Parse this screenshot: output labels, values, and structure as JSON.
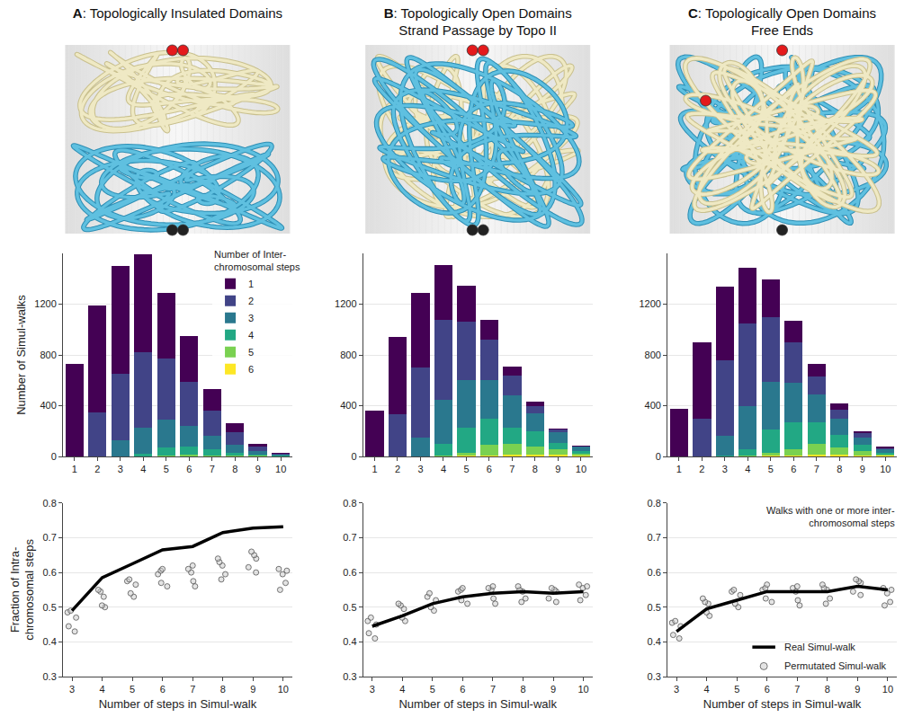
{
  "panels": [
    {
      "title": "A: Topologically Insulated Domains"
    },
    {
      "title": "B: Topologically Open Domains",
      "subtitle": "Strand Passage by Topo II"
    },
    {
      "title": "C: Topologically Open Domains",
      "subtitle": "Free Ends"
    }
  ],
  "chart_data": [
    {
      "type": "bar",
      "stacked": true,
      "x": [
        1,
        2,
        3,
        4,
        5,
        6,
        7,
        8,
        9,
        10
      ],
      "xlim": [
        0.5,
        10.5
      ],
      "xticks": [
        1,
        2,
        3,
        4,
        5,
        6,
        7,
        8,
        9,
        10
      ],
      "ylim": [
        0,
        1600
      ],
      "yticks": [
        0,
        400,
        800,
        1200
      ],
      "y_label": "Number of Simul-walks",
      "grid": true,
      "legend": "upper right",
      "legend_title": "Number of Inter-chromosomal steps",
      "series": [
        {
          "name": "1",
          "color": "#440154",
          "values": [
            730,
            840,
            850,
            770,
            520,
            360,
            170,
            75,
            20,
            5
          ]
        },
        {
          "name": "2",
          "color": "#414487",
          "values": [
            0,
            350,
            520,
            590,
            480,
            350,
            200,
            100,
            40,
            12
          ]
        },
        {
          "name": "3",
          "color": "#2a788e",
          "values": [
            0,
            0,
            130,
            210,
            220,
            160,
            100,
            60,
            25,
            8
          ]
        },
        {
          "name": "4",
          "color": "#22a884",
          "values": [
            0,
            0,
            0,
            20,
            60,
            65,
            50,
            25,
            10,
            4
          ]
        },
        {
          "name": "5",
          "color": "#7ad151",
          "values": [
            0,
            0,
            0,
            0,
            10,
            15,
            10,
            5,
            5,
            1
          ]
        },
        {
          "name": "6",
          "color": "#fde725",
          "values": [
            0,
            0,
            0,
            0,
            0,
            0,
            0,
            0,
            0,
            0
          ]
        }
      ]
    },
    {
      "type": "line",
      "x": [
        3,
        4,
        5,
        6,
        7,
        8,
        9,
        10
      ],
      "xlim": [
        2.7,
        10.3
      ],
      "xticks": [
        3,
        4,
        5,
        6,
        7,
        8,
        9,
        10
      ],
      "ylim": [
        0.3,
        0.8
      ],
      "yticks": [
        0.3,
        0.4,
        0.5,
        0.6,
        0.7,
        0.8
      ],
      "grid": true,
      "x_label": "Number of steps in Simul-walk",
      "y_label": "Fraction of Intra-chromosomal steps",
      "series": [
        {
          "type": "scatter",
          "marker": "circle",
          "color": "#555555",
          "values": [
            [
              0.47,
              0.43,
              0.49,
              0.445,
              0.485
            ],
            [
              0.53,
              0.5,
              0.55,
              0.505,
              0.545
            ],
            [
              0.565,
              0.53,
              0.58,
              0.54,
              0.575
            ],
            [
              0.595,
              0.56,
              0.61,
              0.57,
              0.605
            ],
            [
              0.6,
              0.56,
              0.62,
              0.575,
              0.61
            ],
            [
              0.62,
              0.58,
              0.64,
              0.595,
              0.63
            ],
            [
              0.64,
              0.6,
              0.66,
              0.615,
              0.65
            ],
            [
              0.595,
              0.55,
              0.61,
              0.57,
              0.605
            ]
          ]
        },
        {
          "type": "line",
          "line_style": "solid",
          "color": "#000000",
          "values": [
            0.49,
            0.585,
            0.625,
            0.665,
            0.675,
            0.715,
            0.728,
            0.732
          ]
        }
      ]
    },
    {
      "type": "bar",
      "stacked": true,
      "x": [
        1,
        2,
        3,
        4,
        5,
        6,
        7,
        8,
        9,
        10
      ],
      "xlim": [
        0.5,
        10.5
      ],
      "xticks": [
        1,
        2,
        3,
        4,
        5,
        6,
        7,
        8,
        9,
        10
      ],
      "ylim": [
        0,
        1600
      ],
      "yticks": [
        0,
        400,
        800,
        1200
      ],
      "grid": true,
      "series": [
        {
          "color": "#440154",
          "values": [
            365,
            610,
            590,
            435,
            280,
            155,
            65,
            35,
            5,
            5
          ]
        },
        {
          "color": "#414487",
          "values": [
            0,
            330,
            550,
            625,
            465,
            320,
            160,
            60,
            25,
            5
          ]
        },
        {
          "color": "#2a788e",
          "values": [
            0,
            0,
            150,
            350,
            370,
            300,
            250,
            140,
            80,
            35
          ]
        },
        {
          "color": "#22a884",
          "values": [
            0,
            0,
            0,
            90,
            200,
            210,
            130,
            120,
            50,
            15
          ]
        },
        {
          "color": "#7ad151",
          "values": [
            0,
            0,
            0,
            10,
            25,
            80,
            85,
            65,
            45,
            15
          ]
        },
        {
          "color": "#fde725",
          "values": [
            0,
            0,
            0,
            0,
            5,
            10,
            15,
            15,
            15,
            10
          ]
        }
      ]
    },
    {
      "type": "line",
      "x": [
        3,
        4,
        5,
        6,
        7,
        8,
        9,
        10
      ],
      "xlim": [
        2.7,
        10.3
      ],
      "xticks": [
        3,
        4,
        5,
        6,
        7,
        8,
        9,
        10
      ],
      "ylim": [
        0.3,
        0.8
      ],
      "yticks": [
        0.3,
        0.4,
        0.5,
        0.6,
        0.7,
        0.8
      ],
      "grid": true,
      "x_label": "Number of steps in Simul-walk",
      "series": [
        {
          "type": "scatter",
          "marker": "circle",
          "color": "#555555",
          "values": [
            [
              0.45,
              0.41,
              0.47,
              0.425,
              0.46
            ],
            [
              0.495,
              0.46,
              0.51,
              0.47,
              0.505
            ],
            [
              0.52,
              0.49,
              0.54,
              0.5,
              0.53
            ],
            [
              0.545,
              0.51,
              0.555,
              0.52,
              0.55
            ],
            [
              0.55,
              0.51,
              0.56,
              0.525,
              0.555
            ],
            [
              0.545,
              0.515,
              0.56,
              0.525,
              0.55
            ],
            [
              0.545,
              0.515,
              0.555,
              0.525,
              0.55
            ],
            [
              0.555,
              0.52,
              0.565,
              0.535,
              0.56
            ]
          ]
        },
        {
          "type": "line",
          "line_style": "solid",
          "color": "#000000",
          "values": [
            0.445,
            0.475,
            0.51,
            0.53,
            0.54,
            0.545,
            0.54,
            0.545
          ]
        }
      ]
    },
    {
      "type": "bar",
      "stacked": true,
      "x": [
        1,
        2,
        3,
        4,
        5,
        6,
        7,
        8,
        9,
        10
      ],
      "xlim": [
        0.5,
        10.5
      ],
      "xticks": [
        1,
        2,
        3,
        4,
        5,
        6,
        7,
        8,
        9,
        10
      ],
      "ylim": [
        0,
        1600
      ],
      "yticks": [
        0,
        400,
        800,
        1200
      ],
      "grid": true,
      "series": [
        {
          "color": "#440154",
          "values": [
            375,
            605,
            575,
            440,
            300,
            170,
            100,
            45,
            15,
            10
          ]
        },
        {
          "color": "#414487",
          "values": [
            0,
            295,
            595,
            650,
            505,
            320,
            140,
            70,
            35,
            10
          ]
        },
        {
          "color": "#2a788e",
          "values": [
            0,
            0,
            155,
            340,
            380,
            310,
            220,
            130,
            60,
            25
          ]
        },
        {
          "color": "#22a884",
          "values": [
            0,
            0,
            10,
            55,
            180,
            210,
            170,
            100,
            45,
            15
          ]
        },
        {
          "color": "#7ad151",
          "values": [
            0,
            0,
            0,
            5,
            25,
            55,
            85,
            55,
            35,
            10
          ]
        },
        {
          "color": "#fde725",
          "values": [
            0,
            0,
            0,
            0,
            5,
            5,
            15,
            15,
            10,
            5
          ]
        }
      ]
    },
    {
      "type": "line",
      "x": [
        3,
        4,
        5,
        6,
        7,
        8,
        9,
        10
      ],
      "xlim": [
        2.7,
        10.3
      ],
      "xticks": [
        3,
        4,
        5,
        6,
        7,
        8,
        9,
        10
      ],
      "ylim": [
        0.3,
        0.8
      ],
      "yticks": [
        0.3,
        0.4,
        0.5,
        0.6,
        0.7,
        0.8
      ],
      "grid": true,
      "x_label": "Number of steps in Simul-walk",
      "legend": "lower right",
      "annotation": "Walks with one or more inter-chromosomal steps",
      "series": [
        {
          "name": "Permutated Simul-walk",
          "type": "scatter",
          "marker": "circle",
          "color": "#555555",
          "values": [
            [
              0.445,
              0.41,
              0.46,
              0.42,
              0.455
            ],
            [
              0.51,
              0.475,
              0.525,
              0.485,
              0.515
            ],
            [
              0.535,
              0.5,
              0.55,
              0.51,
              0.545
            ],
            [
              0.55,
              0.515,
              0.565,
              0.525,
              0.555
            ],
            [
              0.545,
              0.505,
              0.56,
              0.52,
              0.555
            ],
            [
              0.55,
              0.51,
              0.565,
              0.525,
              0.555
            ],
            [
              0.57,
              0.535,
              0.58,
              0.545,
              0.575
            ],
            [
              0.54,
              0.505,
              0.555,
              0.515,
              0.55
            ]
          ]
        },
        {
          "name": "Real Simul-walk",
          "type": "line",
          "line_style": "solid",
          "color": "#000000",
          "values": [
            0.43,
            0.495,
            0.52,
            0.545,
            0.545,
            0.545,
            0.56,
            0.55
          ]
        }
      ]
    }
  ]
}
